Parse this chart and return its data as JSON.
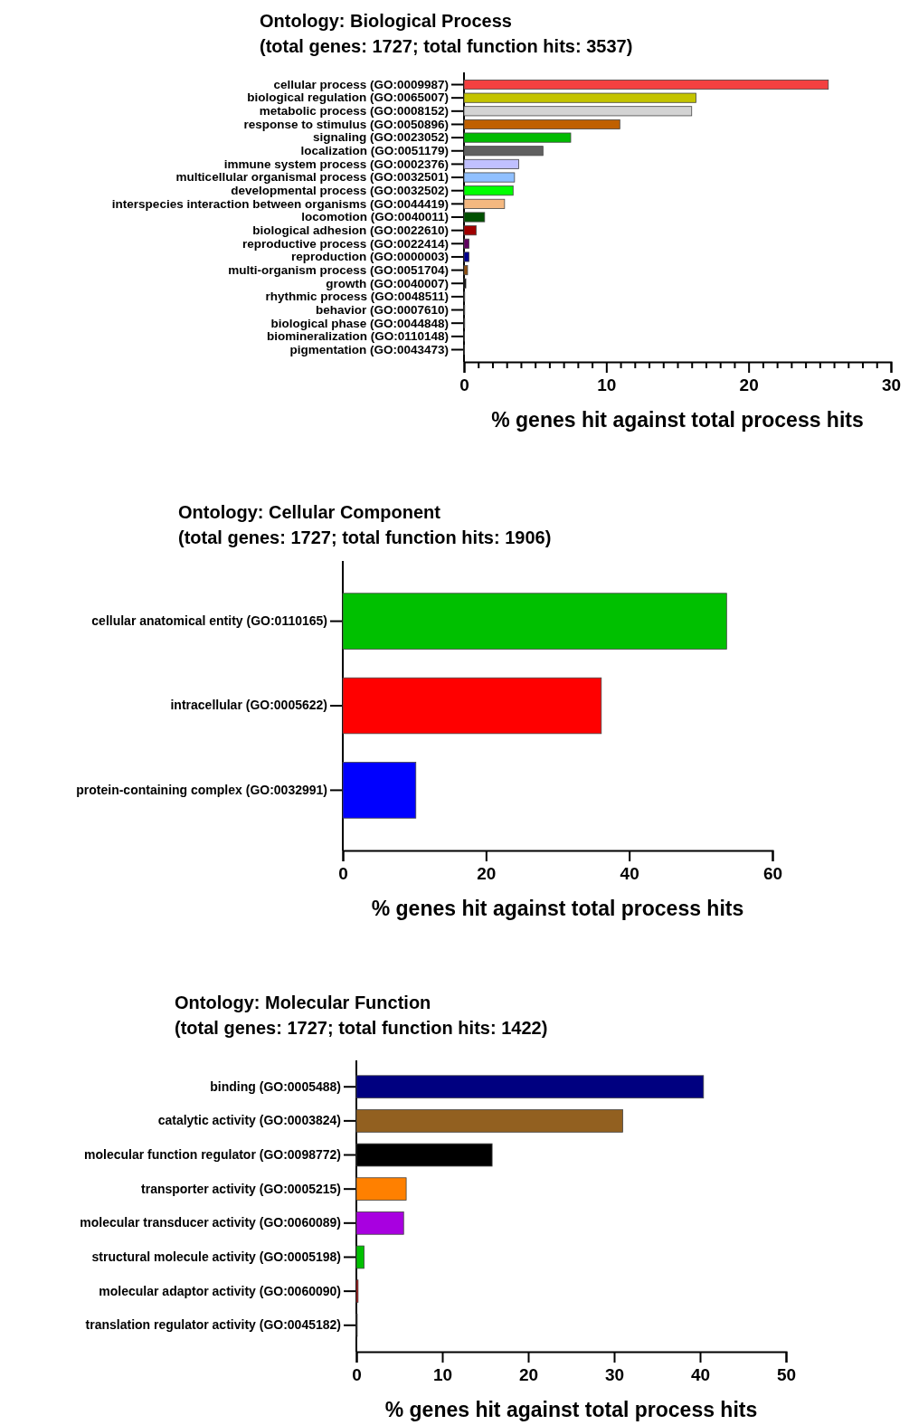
{
  "chart_data": [
    {
      "type": "bar",
      "orientation": "horizontal",
      "title": "Ontology: Biological Process",
      "subtitle": "(total genes: 1727; total function hits: 3537)",
      "xlabel": "% genes hit against total process hits",
      "categories": [
        "cellular process (GO:0009987)",
        "biological regulation (GO:0065007)",
        "metabolic process (GO:0008152)",
        "response to stimulus (GO:0050896)",
        "signaling (GO:0023052)",
        "localization (GO:0051179)",
        "immune system process (GO:0002376)",
        "multicellular organismal process (GO:0032501)",
        "developmental process (GO:0032502)",
        "interspecies interaction between organisms (GO:0044419)",
        "locomotion (GO:0040011)",
        "biological adhesion (GO:0022610)",
        "reproductive process (GO:0022414)",
        "reproduction (GO:0000003)",
        "multi-organism process (GO:0051704)",
        "growth (GO:0040007)",
        "rhythmic process (GO:0048511)",
        "behavior (GO:0007610)",
        "biological phase (GO:0044848)",
        "biomineralization (GO:0110148)",
        "pigmentation (GO:0043473)"
      ],
      "values": [
        25.6,
        16.3,
        16.0,
        10.95,
        7.5,
        5.55,
        3.85,
        3.55,
        3.45,
        2.85,
        1.45,
        0.85,
        0.35,
        0.35,
        0.25,
        0.13,
        0.05,
        0.05,
        0.05,
        0,
        0
      ],
      "colors": [
        "#f44040",
        "#c4c400",
        "#d3d3d3",
        "#c06000",
        "#00bb00",
        "#606060",
        "#c0c0ff",
        "#90c0ff",
        "#00ff00",
        "#f4b880",
        "#005000",
        "#a00000",
        "#600060",
        "#000090",
        "#905010",
        "#000000",
        "#000000",
        "#000000",
        "#000000",
        "#000000",
        "#000000"
      ],
      "xlim": [
        0,
        30
      ],
      "xticks": [
        0,
        {
          "value": 1,
          "label": null
        },
        {
          "value": 2,
          "label": null
        },
        {
          "value": 3,
          "label": null
        },
        {
          "value": 4,
          "label": null
        },
        {
          "value": 5,
          "label": null
        },
        {
          "value": 6,
          "label": null
        },
        {
          "value": 7,
          "label": null
        },
        {
          "value": 8,
          "label": null
        },
        {
          "value": 9,
          "label": null
        },
        10,
        {
          "value": 11,
          "label": null
        },
        {
          "value": 12,
          "label": null
        },
        {
          "value": 13,
          "label": null
        },
        {
          "value": 14,
          "label": null
        },
        {
          "value": 15,
          "label": null
        },
        {
          "value": 16,
          "label": null
        },
        {
          "value": 17,
          "label": null
        },
        {
          "value": 18,
          "label": null
        },
        {
          "value": 19,
          "label": null
        },
        20,
        {
          "value": 21,
          "label": null
        },
        {
          "value": 22,
          "label": null
        },
        {
          "value": 23,
          "label": null
        },
        {
          "value": 24,
          "label": null
        },
        {
          "value": 25,
          "label": null
        },
        {
          "value": 26,
          "label": null
        },
        {
          "value": 27,
          "label": null
        },
        {
          "value": 28,
          "label": null
        },
        {
          "value": 29,
          "label": null
        },
        30
      ]
    },
    {
      "type": "bar",
      "orientation": "horizontal",
      "title": "Ontology: Cellular Component",
      "subtitle": "(total genes: 1727; total function hits: 1906)",
      "xlabel": "% genes hit against total process hits",
      "categories": [
        "cellular anatomical entity (GO:0110165)",
        "intracellular (GO:0005622)",
        "protein-containing complex (GO:0032991)"
      ],
      "values": [
        53.6,
        36.1,
        10.2
      ],
      "colors": [
        "#00c000",
        "#ff0000",
        "#0000ff"
      ],
      "xlim": [
        0,
        60
      ],
      "xticks": [
        0,
        20,
        40,
        60
      ]
    },
    {
      "type": "bar",
      "orientation": "horizontal",
      "title": "Ontology: Molecular Function",
      "subtitle": "(total genes: 1727; total function hits: 1422)",
      "xlabel": "% genes hit against total process hits",
      "categories": [
        "binding (GO:0005488)",
        "catalytic activity (GO:0003824)",
        "molecular function regulator (GO:0098772)",
        "transporter activity (GO:0005215)",
        "molecular transducer activity (GO:0060089)",
        "structural molecule activity (GO:0005198)",
        "molecular adaptor activity (GO:0060090)",
        "translation regulator activity (GO:0045182)"
      ],
      "values": [
        40.4,
        31.0,
        15.8,
        5.8,
        5.5,
        0.9,
        0.2,
        0.1
      ],
      "colors": [
        "#000080",
        "#926020",
        "#000000",
        "#ff8000",
        "#a800e0",
        "#00c000",
        "#c00000",
        "#000000"
      ],
      "xlim": [
        0,
        50
      ],
      "xticks": [
        0,
        10,
        20,
        30,
        40,
        50
      ]
    }
  ]
}
